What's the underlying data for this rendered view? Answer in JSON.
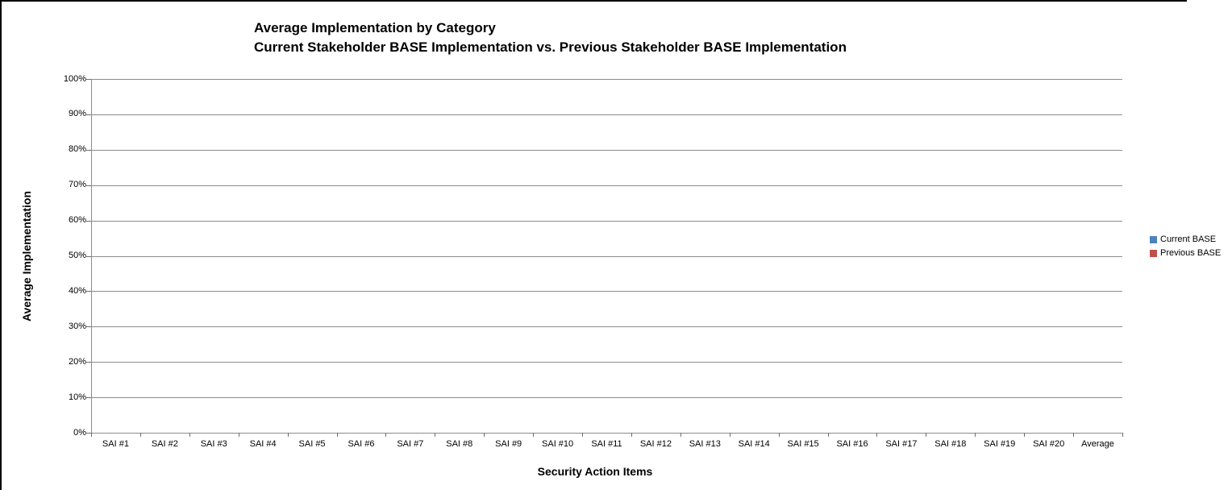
{
  "title": {
    "line1": "Average Implementation by Category",
    "line2": "Current Stakeholder BASE Implementation vs. Previous Stakeholder BASE Implementation"
  },
  "axes": {
    "x_title": "Security Action Items",
    "y_title": "Average Implementation"
  },
  "legend": {
    "items": [
      {
        "label": "Current BASE",
        "color": "#4F81BD"
      },
      {
        "label": "Previous BASE",
        "color": "#C0504D"
      }
    ]
  },
  "chart_data": {
    "type": "bar",
    "title": "Average Implementation by Category",
    "subtitle": "Current Stakeholder BASE Implementation vs. Previous Stakeholder BASE Implementation",
    "xlabel": "Security Action Items",
    "ylabel": "Average Implementation",
    "categories": [
      "SAI #1",
      "SAI #2",
      "SAI #3",
      "SAI #4",
      "SAI #5",
      "SAI #6",
      "SAI #7",
      "SAI #8",
      "SAI #9",
      "SAI #10",
      "SAI #11",
      "SAI #12",
      "SAI #13",
      "SAI #14",
      "SAI #15",
      "SAI #16",
      "SAI #17",
      "SAI #18",
      "SAI #19",
      "SAI #20",
      "Average"
    ],
    "series": [
      {
        "name": "Current BASE",
        "color": "#4F81BD",
        "values": [
          0,
          0,
          0,
          0,
          0,
          0,
          0,
          0,
          0,
          0,
          0,
          0,
          0,
          0,
          0,
          0,
          0,
          0,
          0,
          0,
          0
        ]
      },
      {
        "name": "Previous BASE",
        "color": "#C0504D",
        "values": [
          0,
          0,
          0,
          0,
          0,
          0,
          0,
          0,
          0,
          0,
          0,
          0,
          0,
          0,
          0,
          0,
          0,
          0,
          0,
          0,
          0
        ]
      }
    ],
    "ylim": [
      0,
      100
    ],
    "ytick_step": 10,
    "ytick_labels": [
      "0%",
      "10%",
      "20%",
      "30%",
      "40%",
      "50%",
      "60%",
      "70%",
      "80%",
      "90%",
      "100%"
    ],
    "grid": "horizontal",
    "legend_position": "right",
    "plot_background": "#ffffff"
  }
}
